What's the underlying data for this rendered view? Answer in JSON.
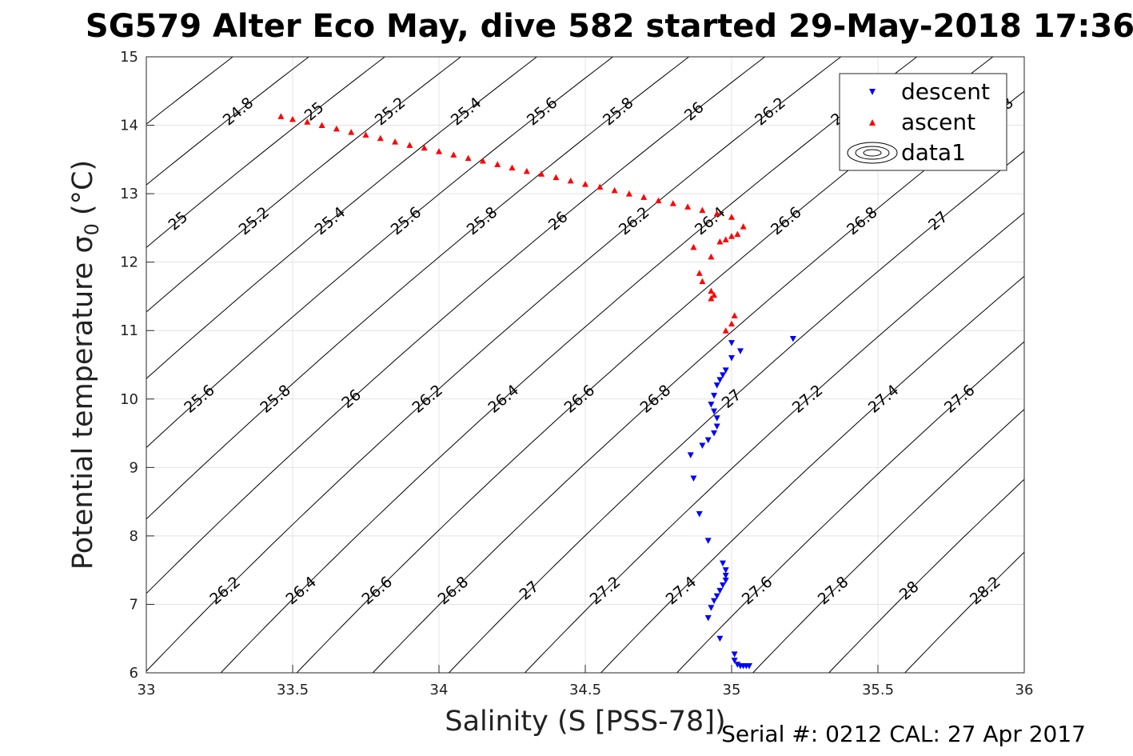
{
  "title": "SG579 Alter Eco May, dive 582 started 29-May-2018 17:36",
  "footer": "Serial #: 0212  CAL: 27 Apr 2017",
  "chart_data": {
    "type": "scatter",
    "xlabel": "Salinity (S [PSS-78])",
    "ylabel": "Potential temperature σ",
    "ylabel_sub": "0",
    "ylabel_unit": "(°C)",
    "xlim": [
      33,
      36
    ],
    "ylim": [
      6,
      15
    ],
    "xticks": [
      33,
      33.5,
      34,
      34.5,
      35,
      35.5,
      36
    ],
    "xtick_labels": [
      "33",
      "33.5",
      "34",
      "34.5",
      "35",
      "35.5",
      "36"
    ],
    "yticks": [
      6,
      7,
      8,
      9,
      10,
      11,
      12,
      13,
      14,
      15
    ],
    "ytick_labels": [
      "6",
      "7",
      "8",
      "9",
      "10",
      "11",
      "12",
      "13",
      "14",
      "15"
    ],
    "grid": true,
    "legend_position": "top-right",
    "legend": [
      "descent",
      "ascent",
      "data1"
    ],
    "colors": {
      "descent": "#0000ff",
      "ascent": "#ff0000",
      "contour": "#000000"
    },
    "series": [
      {
        "name": "descent",
        "marker": "triangle-down",
        "points": [
          [
            35.21,
            10.88
          ],
          [
            35.03,
            10.7
          ],
          [
            35.0,
            10.82
          ],
          [
            35.0,
            10.6
          ],
          [
            34.98,
            10.42
          ],
          [
            34.97,
            10.35
          ],
          [
            34.96,
            10.28
          ],
          [
            34.95,
            10.2
          ],
          [
            34.94,
            10.05
          ],
          [
            34.93,
            9.92
          ],
          [
            34.94,
            9.82
          ],
          [
            34.95,
            9.72
          ],
          [
            34.95,
            9.6
          ],
          [
            34.94,
            9.5
          ],
          [
            34.92,
            9.4
          ],
          [
            34.9,
            9.32
          ],
          [
            34.86,
            9.18
          ],
          [
            34.87,
            8.84
          ],
          [
            34.89,
            8.32
          ],
          [
            34.92,
            7.93
          ],
          [
            34.97,
            7.6
          ],
          [
            34.98,
            7.5
          ],
          [
            34.98,
            7.42
          ],
          [
            34.98,
            7.35
          ],
          [
            34.97,
            7.28
          ],
          [
            34.96,
            7.2
          ],
          [
            34.95,
            7.12
          ],
          [
            34.94,
            7.05
          ],
          [
            34.93,
            6.95
          ],
          [
            34.92,
            6.8
          ],
          [
            34.96,
            6.5
          ],
          [
            35.01,
            6.27
          ],
          [
            35.01,
            6.18
          ],
          [
            35.02,
            6.12
          ],
          [
            35.03,
            6.1
          ],
          [
            35.04,
            6.1
          ],
          [
            35.05,
            6.1
          ],
          [
            35.06,
            6.1
          ]
        ]
      },
      {
        "name": "ascent",
        "marker": "triangle-up",
        "points": [
          [
            33.46,
            14.13
          ],
          [
            33.5,
            14.09
          ],
          [
            33.55,
            14.05
          ],
          [
            33.6,
            14.0
          ],
          [
            33.65,
            13.95
          ],
          [
            33.7,
            13.9
          ],
          [
            33.75,
            13.86
          ],
          [
            33.8,
            13.81
          ],
          [
            33.85,
            13.76
          ],
          [
            33.9,
            13.71
          ],
          [
            33.95,
            13.67
          ],
          [
            34.0,
            13.62
          ],
          [
            34.05,
            13.57
          ],
          [
            34.1,
            13.52
          ],
          [
            34.15,
            13.48
          ],
          [
            34.2,
            13.43
          ],
          [
            34.25,
            13.38
          ],
          [
            34.3,
            13.33
          ],
          [
            34.35,
            13.29
          ],
          [
            34.4,
            13.24
          ],
          [
            34.45,
            13.19
          ],
          [
            34.5,
            13.14
          ],
          [
            34.55,
            13.1
          ],
          [
            34.6,
            13.05
          ],
          [
            34.65,
            13.0
          ],
          [
            34.7,
            12.95
          ],
          [
            34.75,
            12.9
          ],
          [
            34.8,
            12.86
          ],
          [
            34.85,
            12.81
          ],
          [
            34.9,
            12.76
          ],
          [
            34.95,
            12.71
          ],
          [
            35.0,
            12.66
          ],
          [
            35.04,
            12.52
          ],
          [
            35.02,
            12.41
          ],
          [
            35.0,
            12.38
          ],
          [
            34.98,
            12.33
          ],
          [
            34.96,
            12.3
          ],
          [
            34.87,
            12.22
          ],
          [
            34.93,
            12.08
          ],
          [
            34.89,
            11.84
          ],
          [
            34.9,
            11.72
          ],
          [
            34.93,
            11.58
          ],
          [
            34.94,
            11.52
          ],
          [
            34.93,
            11.47
          ],
          [
            35.01,
            11.22
          ],
          [
            35.0,
            11.1
          ],
          [
            34.98,
            11.0
          ]
        ]
      }
    ],
    "contours": [
      {
        "level": "24.8",
        "lines": [
          [
            33.32,
            14.0
          ],
          [
            33.33,
            14.13
          ],
          [
            36.0,
            20.0
          ]
        ]
      },
      {
        "level": "25",
        "lines": [
          [
            33.0,
            11.76
          ],
          [
            36.0,
            19.0
          ]
        ]
      }
    ]
  }
}
